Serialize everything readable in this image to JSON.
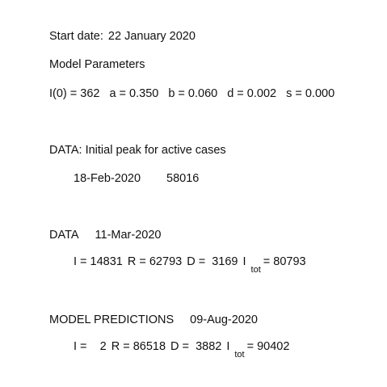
{
  "start": {
    "label": "Start date:",
    "value": "22 January 2020"
  },
  "model_params": {
    "title": "Model Parameters",
    "I0": "I(0) = 362",
    "a": "a = 0.350",
    "b": "b = 0.060",
    "d": "d = 0.002",
    "s": "s = 0.000"
  },
  "initial_peak": {
    "heading": "DATA: Initial peak for active cases",
    "date": "18-Feb-2020",
    "value": "58016"
  },
  "data": {
    "label": "DATA",
    "date": "11-Mar-2020",
    "I": "I = 14831",
    "R": "R = 62793",
    "D": "D =  3169",
    "Itot_symbol": "I",
    "Itot_sub": "tot",
    "Itot_value": "= 80793"
  },
  "predictions": {
    "label": "MODEL PREDICTIONS",
    "date": "09-Aug-2020",
    "I": "I =    2",
    "R": "R = 86518",
    "D": "D =  3882",
    "Itot_symbol": "I",
    "Itot_sub": "tot",
    "Itot_value": "= 90402"
  }
}
